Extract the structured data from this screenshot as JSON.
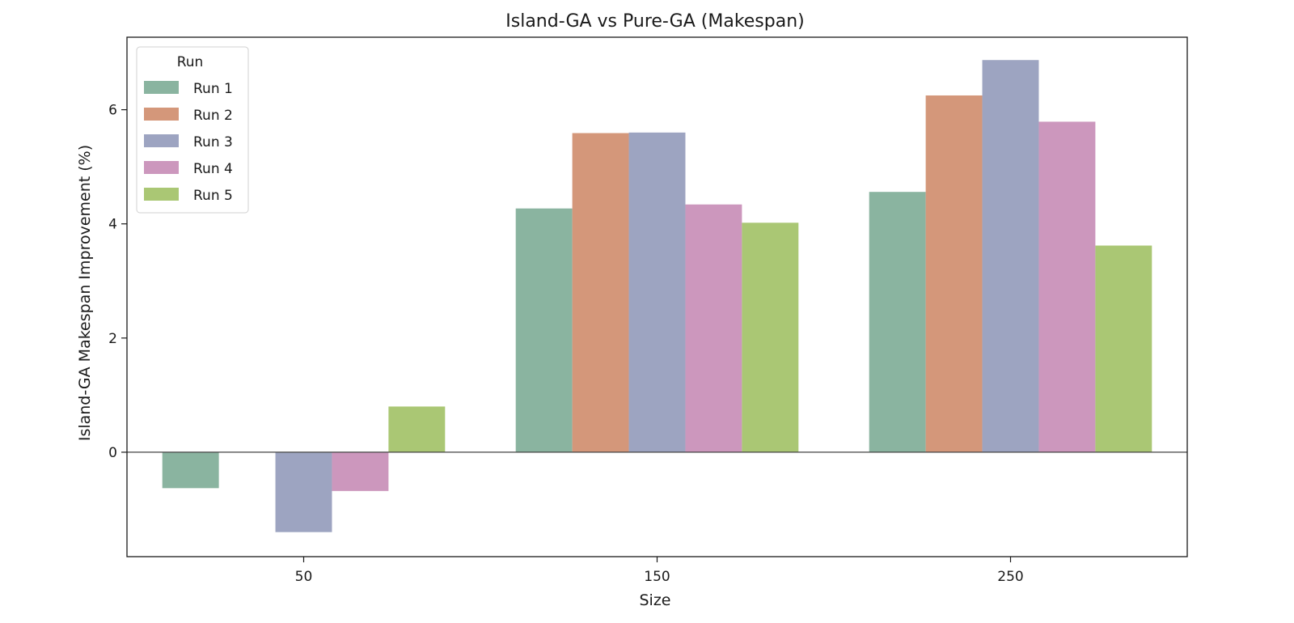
{
  "chart_data": {
    "type": "bar",
    "title": "Island-GA vs Pure-GA (Makespan)",
    "xlabel": "Size",
    "ylabel": "Island-GA Makespan Improvement (%)",
    "categories": [
      "50",
      "150",
      "250"
    ],
    "ylim": [
      -1.83,
      7.27
    ],
    "yticks": [
      0,
      2,
      4,
      6
    ],
    "grid": false,
    "legend": {
      "title": "Run",
      "placement": "top-left"
    },
    "series": [
      {
        "name": "Run 1",
        "color": "#8ab4a0",
        "values": [
          -0.63,
          4.27,
          4.56
        ]
      },
      {
        "name": "Run 2",
        "color": "#d4977a",
        "values": [
          null,
          5.59,
          6.25
        ]
      },
      {
        "name": "Run 3",
        "color": "#9da4c1",
        "values": [
          -1.4,
          5.6,
          6.87
        ]
      },
      {
        "name": "Run 4",
        "color": "#cc97bd",
        "values": [
          -0.68,
          4.34,
          5.79
        ]
      },
      {
        "name": "Run 5",
        "color": "#aac774",
        "values": [
          0.8,
          4.02,
          3.62
        ]
      }
    ]
  }
}
